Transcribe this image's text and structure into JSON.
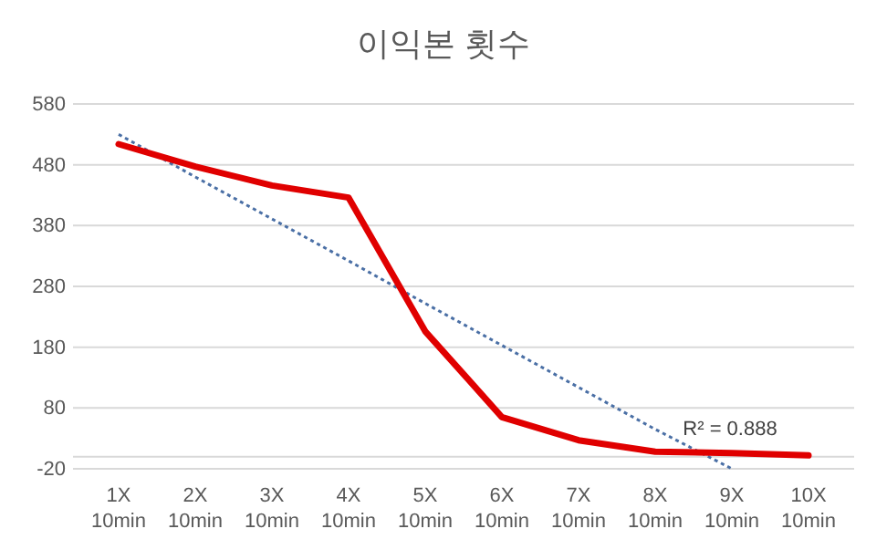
{
  "chart_data": {
    "type": "line",
    "title": "이익본 횟수",
    "categories": [
      "1X 10min",
      "2X 10min",
      "3X 10min",
      "4X 10min",
      "5X 10min",
      "6X 10min",
      "7X 10min",
      "8X 10min",
      "9X 10min",
      "10X 10min"
    ],
    "series": [
      {
        "color": "#e00000",
        "values": [
          514,
          477,
          446,
          426,
          206,
          65,
          27,
          8,
          6,
          2
        ],
        "line_style": "solid"
      },
      {
        "color": "#4a6fa5",
        "values": [
          530,
          460,
          391,
          322,
          252,
          183,
          114,
          45,
          -20,
          null
        ],
        "line_style": "dotted"
      }
    ],
    "ylim": [
      -20,
      580
    ],
    "yticks": [
      -20,
      80,
      180,
      280,
      380,
      480,
      580
    ],
    "grid": "y",
    "marker": "none",
    "annotations": [
      "R² = 0.888"
    ]
  }
}
